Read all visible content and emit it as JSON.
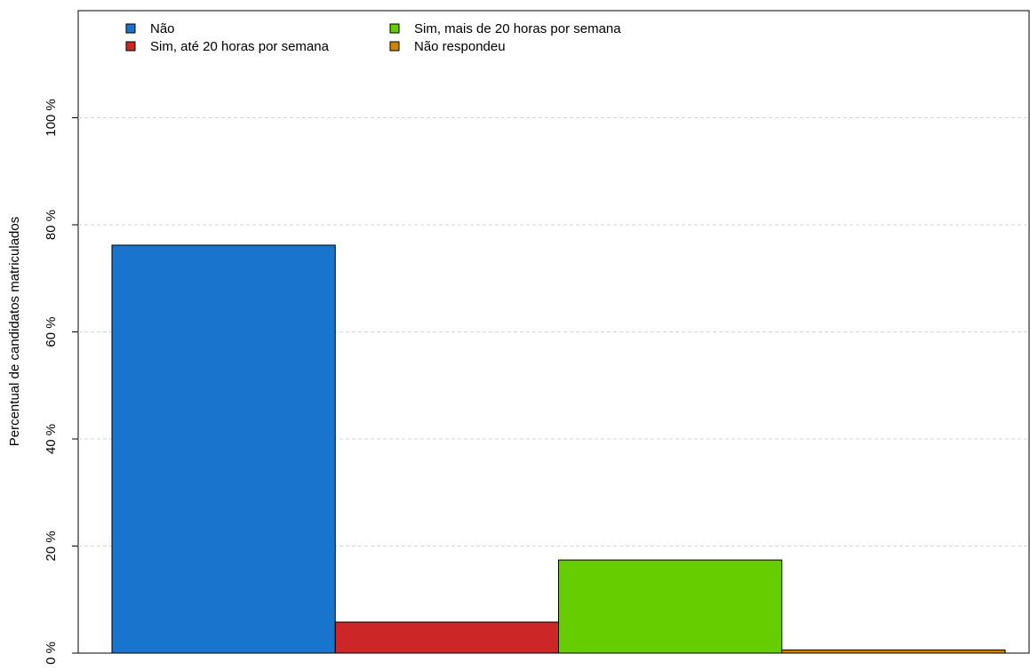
{
  "chart_data": {
    "type": "bar",
    "title": "",
    "xlabel": "",
    "ylabel": "Percentual de candidatos matriculados",
    "ylim": [
      0,
      120
    ],
    "y_ticks": [
      {
        "value": 0,
        "label": "0 %"
      },
      {
        "value": 20,
        "label": "20 %"
      },
      {
        "value": 40,
        "label": "40 %"
      },
      {
        "value": 60,
        "label": "60 %"
      },
      {
        "value": 80,
        "label": "80 %"
      },
      {
        "value": 100,
        "label": "100 %"
      }
    ],
    "grid": "horizontal dashed",
    "legend_position": "top-left",
    "categories": [
      "Não",
      "Sim, até 20 horas por semana",
      "Sim, mais de 20 horas por semana",
      "Não respondeu"
    ],
    "values": [
      76.2,
      5.8,
      17.4,
      0.6
    ],
    "colors": [
      "#1874CD",
      "#CD2626",
      "#66CD00",
      "#CD8500"
    ],
    "legend": [
      {
        "label": "Não",
        "color": "#1874CD"
      },
      {
        "label": "Sim, até 20 horas por semana",
        "color": "#CD2626"
      },
      {
        "label": "Sim, mais de 20 horas por semana",
        "color": "#66CD00"
      },
      {
        "label": "Não respondeu",
        "color": "#CD8500"
      }
    ]
  }
}
